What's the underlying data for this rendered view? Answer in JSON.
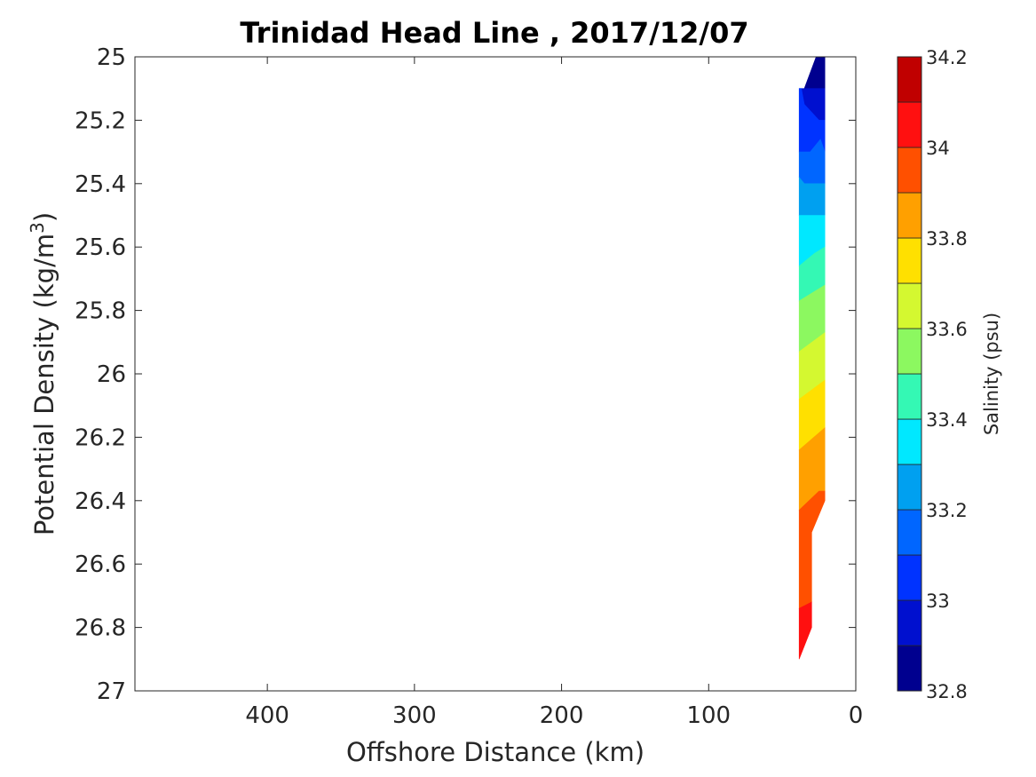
{
  "chart_data": {
    "type": "filled-contour",
    "title": "Trinidad Head Line , 2017/12/07",
    "xlabel": "Offshore Distance (km)",
    "ylabel_main": "Potential Density (kg/m",
    "ylabel_sup": "3",
    "ylabel_close": ")",
    "x_axis": {
      "range": [
        490,
        0
      ],
      "reversed": true,
      "ticks": [
        400,
        300,
        200,
        100,
        0
      ],
      "tick_labels": [
        "400",
        "300",
        "200",
        "100",
        "0"
      ]
    },
    "y_axis": {
      "range": [
        25,
        27
      ],
      "reversed": true,
      "ticks": [
        25,
        25.2,
        25.4,
        25.6,
        25.8,
        26,
        26.2,
        26.4,
        26.6,
        26.8,
        27
      ],
      "tick_labels": [
        "25",
        "25.2",
        "25.4",
        "25.6",
        "25.8",
        "26",
        "26.2",
        "26.4",
        "26.6",
        "26.8",
        "27"
      ]
    },
    "colorbar": {
      "label": "Salinity (psu)",
      "range": [
        32.8,
        34.2
      ],
      "ticks": [
        32.8,
        33,
        33.2,
        33.4,
        33.6,
        33.8,
        34,
        34.2
      ],
      "tick_labels": [
        "32.8",
        "33",
        "33.2",
        "33.4",
        "33.6",
        "33.8",
        "34",
        "34.2"
      ],
      "levels": [
        {
          "from": 32.8,
          "to": 32.9,
          "color": "#00008f"
        },
        {
          "from": 32.9,
          "to": 33.0,
          "color": "#0010cf"
        },
        {
          "from": 33.0,
          "to": 33.1,
          "color": "#0033ff"
        },
        {
          "from": 33.1,
          "to": 33.2,
          "color": "#0066ff"
        },
        {
          "from": 33.2,
          "to": 33.3,
          "color": "#00a0f0"
        },
        {
          "from": 33.3,
          "to": 33.4,
          "color": "#00e8ff"
        },
        {
          "from": 33.4,
          "to": 33.5,
          "color": "#34f8b4"
        },
        {
          "from": 33.5,
          "to": 33.6,
          "color": "#8cf860"
        },
        {
          "from": 33.6,
          "to": 33.7,
          "color": "#d4f830"
        },
        {
          "from": 33.7,
          "to": 33.8,
          "color": "#ffe000"
        },
        {
          "from": 33.8,
          "to": 33.9,
          "color": "#ffa000"
        },
        {
          "from": 33.9,
          "to": 34.0,
          "color": "#ff5000"
        },
        {
          "from": 34.0,
          "to": 34.1,
          "color": "#ff1010"
        },
        {
          "from": 34.1,
          "to": 34.2,
          "color": "#c00000"
        }
      ]
    },
    "bands": [
      {
        "salinity": 32.85,
        "color": "#00008f",
        "poly": [
          [
            35.0,
            25.1
          ],
          [
            27.0,
            25.0
          ],
          [
            21.0,
            25.0
          ],
          [
            21.0,
            25.1
          ]
        ]
      },
      {
        "salinity": 32.95,
        "color": "#0010cf",
        "poly": [
          [
            38.5,
            25.1
          ],
          [
            35.0,
            25.1
          ],
          [
            21.0,
            25.1
          ],
          [
            21.0,
            25.2
          ],
          [
            25.0,
            25.2
          ],
          [
            35.0,
            25.15
          ],
          [
            37.0,
            25.1
          ]
        ]
      },
      {
        "salinity": 33.05,
        "color": "#0033ff",
        "poly": [
          [
            38.5,
            25.1
          ],
          [
            37.0,
            25.1
          ],
          [
            35.0,
            25.15
          ],
          [
            25.0,
            25.2
          ],
          [
            21.0,
            25.2
          ],
          [
            21.0,
            25.3
          ],
          [
            24.0,
            25.26
          ],
          [
            31.0,
            25.3
          ],
          [
            38.5,
            25.3
          ]
        ]
      },
      {
        "salinity": 33.15,
        "color": "#0066ff",
        "poly": [
          [
            38.5,
            25.3
          ],
          [
            31.0,
            25.3
          ],
          [
            24.0,
            25.26
          ],
          [
            21.0,
            25.3
          ],
          [
            21.0,
            25.4
          ],
          [
            35.0,
            25.4
          ],
          [
            38.5,
            25.38
          ]
        ]
      },
      {
        "salinity": 33.25,
        "color": "#00a0f0",
        "poly": [
          [
            38.5,
            25.38
          ],
          [
            35.0,
            25.4
          ],
          [
            21.0,
            25.4
          ],
          [
            21.0,
            25.5
          ],
          [
            38.5,
            25.5
          ]
        ]
      },
      {
        "salinity": 33.35,
        "color": "#00e8ff",
        "poly": [
          [
            38.5,
            25.5
          ],
          [
            21.0,
            25.5
          ],
          [
            21.0,
            25.6
          ],
          [
            28.0,
            25.62
          ],
          [
            38.5,
            25.66
          ]
        ]
      },
      {
        "salinity": 33.45,
        "color": "#34f8b4",
        "poly": [
          [
            38.5,
            25.66
          ],
          [
            28.0,
            25.62
          ],
          [
            21.0,
            25.6
          ],
          [
            21.0,
            25.72
          ],
          [
            38.5,
            25.77
          ]
        ]
      },
      {
        "salinity": 33.55,
        "color": "#8cf860",
        "poly": [
          [
            38.5,
            25.77
          ],
          [
            21.0,
            25.72
          ],
          [
            21.0,
            25.87
          ],
          [
            38.5,
            25.93
          ]
        ]
      },
      {
        "salinity": 33.65,
        "color": "#d4f830",
        "poly": [
          [
            38.5,
            25.93
          ],
          [
            21.0,
            25.87
          ],
          [
            21.0,
            26.02
          ],
          [
            38.5,
            26.08
          ]
        ]
      },
      {
        "salinity": 33.75,
        "color": "#ffe000",
        "poly": [
          [
            38.5,
            26.08
          ],
          [
            21.0,
            26.02
          ],
          [
            21.0,
            26.17
          ],
          [
            38.5,
            26.24
          ]
        ]
      },
      {
        "salinity": 33.85,
        "color": "#ffa000",
        "poly": [
          [
            38.5,
            26.24
          ],
          [
            21.0,
            26.17
          ],
          [
            21.0,
            26.37
          ],
          [
            25.0,
            26.37
          ],
          [
            38.5,
            26.43
          ]
        ]
      },
      {
        "salinity": 33.95,
        "color": "#ff5000",
        "poly": [
          [
            38.5,
            26.43
          ],
          [
            25.0,
            26.37
          ],
          [
            21.0,
            26.37
          ],
          [
            21.0,
            26.4
          ],
          [
            30.0,
            26.5
          ],
          [
            30.0,
            26.72
          ],
          [
            38.5,
            26.74
          ]
        ]
      },
      {
        "salinity": 34.05,
        "color": "#ff1010",
        "poly": [
          [
            38.5,
            26.74
          ],
          [
            30.0,
            26.72
          ],
          [
            30.0,
            26.8
          ],
          [
            38.5,
            26.9
          ]
        ]
      }
    ]
  }
}
